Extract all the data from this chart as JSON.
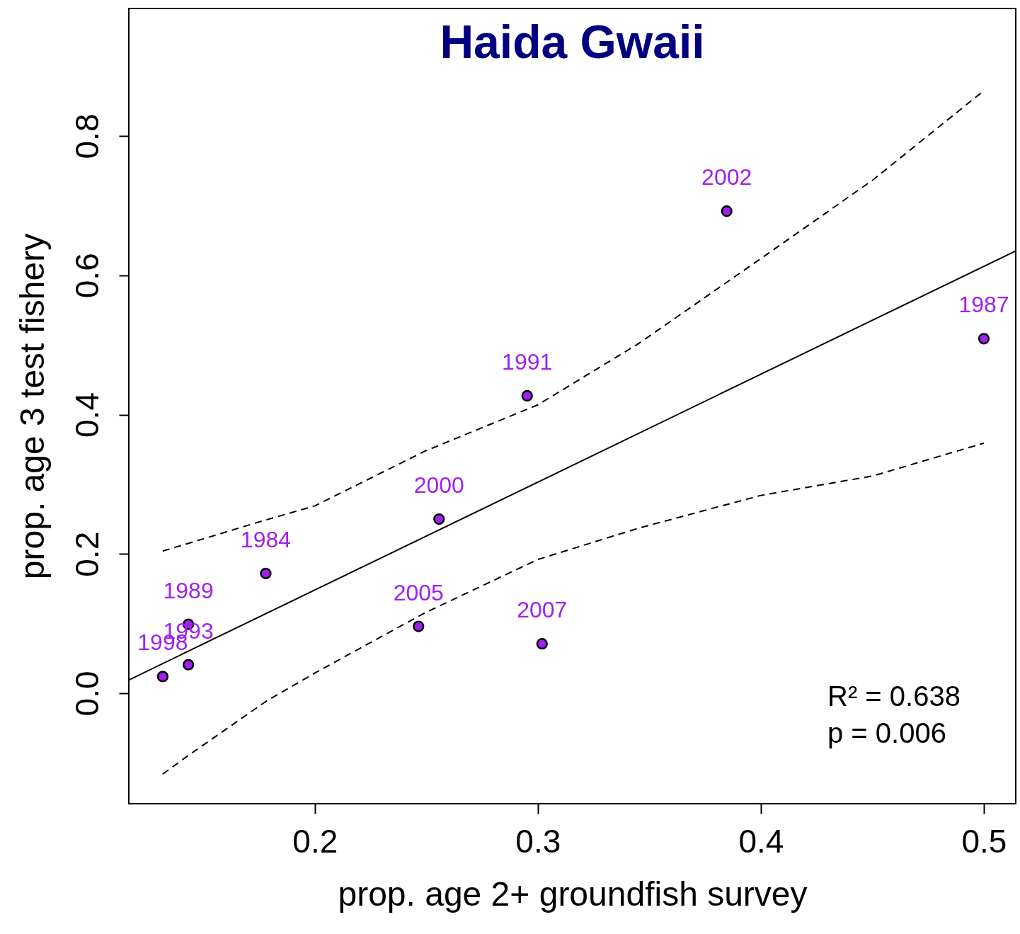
{
  "chart_data": {
    "type": "scatter",
    "title": "Haida Gwaii",
    "xlabel": "prop. age 2+ groundfish survey",
    "ylabel": "prop. age 3 test fishery",
    "xlim": [
      0.1166,
      0.5143
    ],
    "ylim": [
      -0.1586,
      0.983
    ],
    "xticks": [
      0.2,
      0.3,
      0.4,
      0.5
    ],
    "yticks": [
      {
        "value": 0,
        "label": "0.0"
      },
      0.2,
      0.4,
      0.6,
      0.8
    ],
    "grid": false,
    "series": [
      {
        "color": "#a020f0",
        "marker": "circle",
        "x": [
          0.1318,
          0.1433,
          0.1433,
          0.178,
          0.2465,
          0.2557,
          0.3019,
          0.2952,
          0.3847,
          0.5
        ],
        "values": [
          0.024,
          0.041,
          0.099,
          0.172,
          0.096,
          0.25,
          0.071,
          0.427,
          0.692,
          0.509
        ]
      },
      {
        "type": "line",
        "color": "#000000",
        "line_style": "solid",
        "x": [
          0.1166,
          0.5143
        ],
        "values": [
          0.019,
          0.635
        ]
      },
      {
        "type": "line",
        "color": "#000000",
        "line_style": "dashed",
        "x": [
          0.1318,
          0.1751,
          0.2,
          0.2497,
          0.3,
          0.3452,
          0.4,
          0.4503,
          0.5
        ],
        "values": [
          0.204,
          0.246,
          0.269,
          0.348,
          0.414,
          0.502,
          0.624,
          0.737,
          0.865
        ]
      },
      {
        "type": "line",
        "color": "#000000",
        "line_style": "dashed",
        "x": [
          0.1318,
          0.143,
          0.1784,
          0.2,
          0.2497,
          0.3,
          0.3452,
          0.4,
          0.4503,
          0.5
        ],
        "values": [
          -0.116,
          -0.09,
          -0.011,
          0.029,
          0.116,
          0.192,
          0.237,
          0.284,
          0.312,
          0.359
        ]
      }
    ],
    "annotations": [
      {
        "text": "1998",
        "x": 0.1318,
        "y": 0.024
      },
      {
        "text": "1993",
        "x": 0.1433,
        "y": 0.041
      },
      {
        "text": "1989",
        "x": 0.1433,
        "y": 0.099
      },
      {
        "text": "1984",
        "x": 0.178,
        "y": 0.172
      },
      {
        "text": "2005",
        "x": 0.2465,
        "y": 0.096
      },
      {
        "text": "2000",
        "x": 0.2557,
        "y": 0.25
      },
      {
        "text": "2007",
        "x": 0.3019,
        "y": 0.071
      },
      {
        "text": "1991",
        "x": 0.2952,
        "y": 0.427
      },
      {
        "text": "2002",
        "x": 0.3847,
        "y": 0.692
      },
      {
        "text": "1987",
        "x": 0.5,
        "y": 0.509
      },
      "R² = 0.638",
      "p = 0.006"
    ]
  }
}
